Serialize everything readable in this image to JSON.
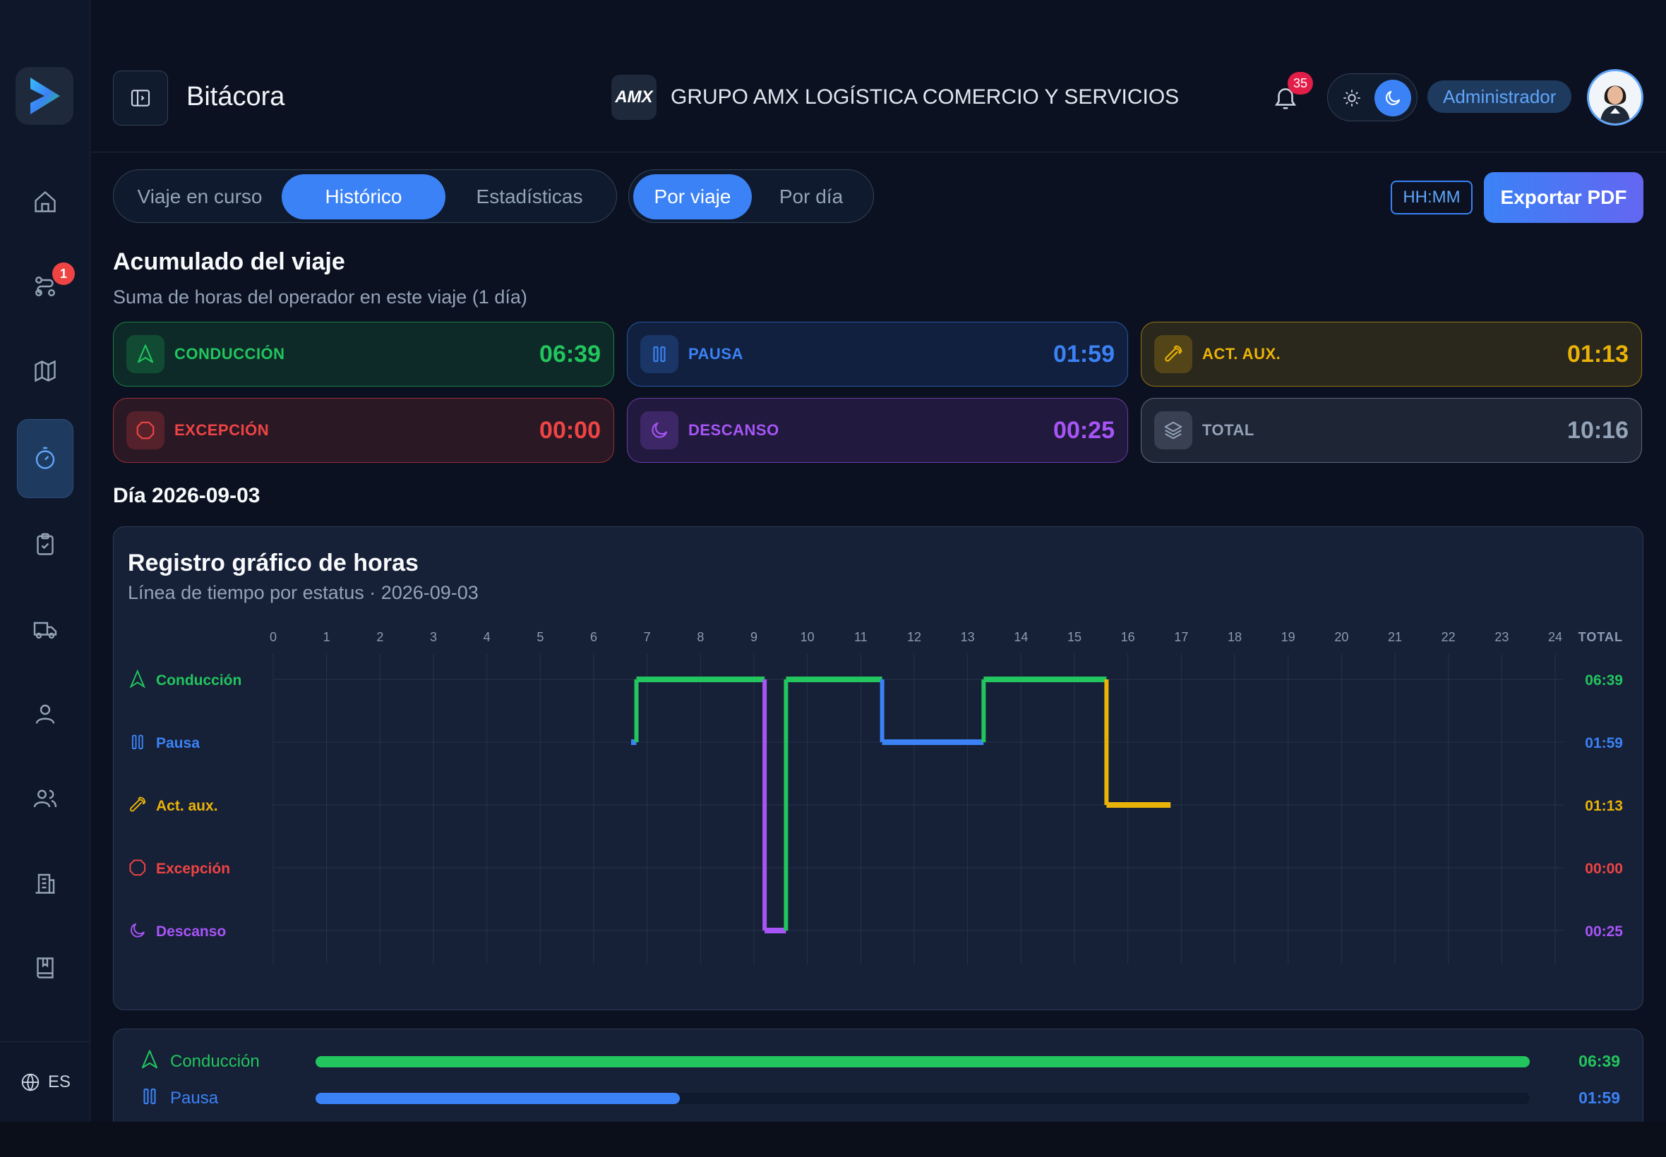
{
  "app": {
    "page_title": "Bitácora",
    "company_logo_text": "AMX",
    "company_name": "GRUPO AMX LOGÍSTICA COMERCIO Y SERVICIOS",
    "notifications_count": "35",
    "role": "Administrador",
    "language": "ES"
  },
  "sidebar": {
    "items": [
      {
        "name": "home",
        "icon": "home-icon"
      },
      {
        "name": "routes",
        "icon": "route-icon",
        "badge": "1"
      },
      {
        "name": "map",
        "icon": "map-icon"
      },
      {
        "name": "logbook",
        "icon": "timer-icon",
        "active": true
      },
      {
        "name": "tasks",
        "icon": "clipboard-check-icon"
      },
      {
        "name": "fleet",
        "icon": "truck-icon"
      },
      {
        "name": "operator",
        "icon": "user-icon"
      },
      {
        "name": "users",
        "icon": "users-icon"
      },
      {
        "name": "companies",
        "icon": "building-icon"
      },
      {
        "name": "manual",
        "icon": "book-icon"
      }
    ]
  },
  "tabs": {
    "main": [
      "Viaje en curso",
      "Histórico",
      "Estadísticas"
    ],
    "active_main": "Histórico",
    "view": [
      "Por viaje",
      "Por día"
    ],
    "active_view": "Por viaje"
  },
  "actions": {
    "format": "HH:MM",
    "export": "Exportar PDF"
  },
  "accumulated": {
    "title": "Acumulado del viaje",
    "subtitle": "Suma de horas del operador en este viaje (1 día)",
    "cards": [
      {
        "label": "CONDUCCIÓN",
        "value": "06:39",
        "icon": "navigation-arrow-icon",
        "color": "#22c55e"
      },
      {
        "label": "PAUSA",
        "value": "01:59",
        "icon": "pause-icon",
        "color": "#3b82f6"
      },
      {
        "label": "ACT. AUX.",
        "value": "01:13",
        "icon": "wrench-icon",
        "color": "#eab308"
      },
      {
        "label": "EXCEPCIÓN",
        "value": "00:00",
        "icon": "octagon-icon",
        "color": "#ef4444"
      },
      {
        "label": "DESCANSO",
        "value": "00:25",
        "icon": "moon-icon",
        "color": "#a855f7"
      },
      {
        "label": "TOTAL",
        "value": "10:16",
        "icon": "layers-icon",
        "color": "#94a3b8"
      }
    ]
  },
  "day": {
    "title": "Día 2026-09-03"
  },
  "chart_data": {
    "type": "line",
    "title": "Registro gráfico de horas",
    "subtitle": "Línea de tiempo por estatus · 2026-09-03",
    "x_ticks": [
      "0",
      "1",
      "2",
      "3",
      "4",
      "5",
      "6",
      "7",
      "8",
      "9",
      "10",
      "11",
      "12",
      "13",
      "14",
      "15",
      "16",
      "17",
      "18",
      "19",
      "20",
      "21",
      "22",
      "23",
      "24"
    ],
    "xlim": [
      0,
      24
    ],
    "total_header": "TOTAL",
    "grid": true,
    "statuses": [
      {
        "key": "conduccion",
        "label": "Conducción",
        "total": "06:39",
        "color": "#22c55e",
        "icon": "navigation-arrow-icon"
      },
      {
        "key": "pausa",
        "label": "Pausa",
        "total": "01:59",
        "color": "#3b82f6",
        "icon": "pause-icon"
      },
      {
        "key": "aux",
        "label": "Act. aux.",
        "total": "01:13",
        "color": "#eab308",
        "icon": "wrench-icon"
      },
      {
        "key": "excepcion",
        "label": "Excepción",
        "total": "00:00",
        "color": "#ef4444",
        "icon": "octagon-icon"
      },
      {
        "key": "descanso",
        "label": "Descanso",
        "total": "00:25",
        "color": "#a855f7",
        "icon": "moon-icon"
      }
    ],
    "segments": [
      {
        "status": 1,
        "start": 6.7,
        "end": 6.8
      },
      {
        "status": 0,
        "start": 6.8,
        "end": 9.2
      },
      {
        "status": 4,
        "start": 9.2,
        "end": 9.6
      },
      {
        "status": 0,
        "start": 9.6,
        "end": 11.4
      },
      {
        "status": 1,
        "start": 11.4,
        "end": 13.3
      },
      {
        "status": 0,
        "start": 13.3,
        "end": 15.6
      },
      {
        "status": 2,
        "start": 15.6,
        "end": 16.8
      }
    ]
  },
  "summary": {
    "rows": [
      {
        "label": "Conducción",
        "value": "06:39",
        "fraction": 1.0,
        "color": "#22c55e",
        "icon": "navigation-arrow-icon"
      },
      {
        "label": "Pausa",
        "value": "01:59",
        "fraction": 0.3,
        "color": "#3b82f6",
        "icon": "pause-icon"
      }
    ]
  }
}
